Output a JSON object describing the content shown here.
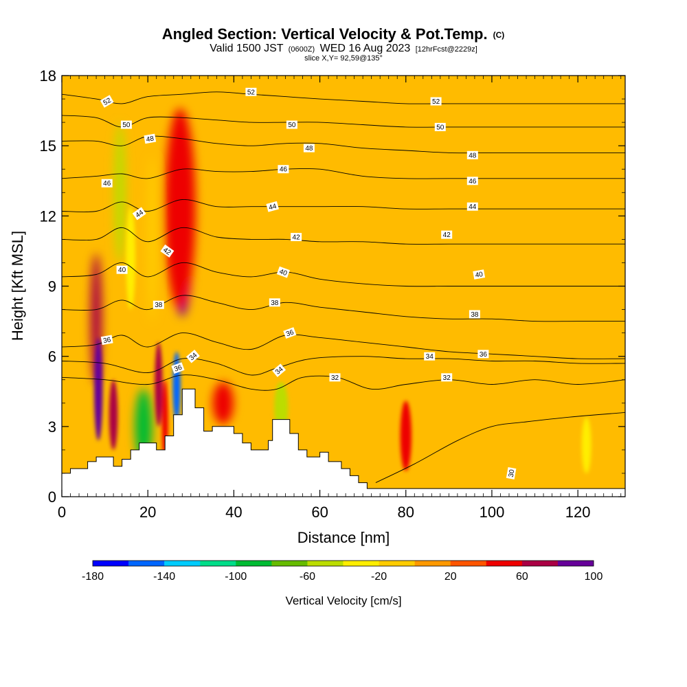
{
  "title": {
    "main": "Angled Section: Vertical Velocity & Pot.Temp.",
    "main_tag": "(C)",
    "valid_prefix": "Valid 1500 JST",
    "valid_utc": "(0600Z)",
    "valid_date": "WED 16 Aug 2023",
    "forecast": "[12hrFcst@2229z]",
    "slice": "slice X,Y= 92,59@135°"
  },
  "chart_data": {
    "type": "heatmap",
    "xlabel": "Distance [nm]",
    "ylabel": "Height [Kft MSL]",
    "xlim": [
      0,
      131
    ],
    "ylim": [
      0,
      18
    ],
    "x_ticks": [
      {
        "value": 0,
        "label": "0"
      },
      {
        "value": 20,
        "label": "20"
      },
      {
        "value": 40,
        "label": "40"
      },
      {
        "value": 60,
        "label": "60"
      },
      {
        "value": 80,
        "label": "80"
      },
      {
        "value": 100,
        "label": "100"
      },
      {
        "value": 120,
        "label": "120"
      }
    ],
    "y_ticks": [
      {
        "value": 0,
        "label": "0"
      },
      {
        "value": 3,
        "label": "3"
      },
      {
        "value": 6,
        "label": "6"
      },
      {
        "value": 9,
        "label": "9"
      },
      {
        "value": 12,
        "label": "12"
      },
      {
        "value": 15,
        "label": "15"
      },
      {
        "value": 18,
        "label": "18"
      }
    ],
    "colorbar": {
      "title": "Vertical Velocity [cm/s]",
      "min": -180,
      "max": 100,
      "step": 20,
      "tick_labels": [
        {
          "value": -180,
          "label": "-180"
        },
        {
          "value": -140,
          "label": "-140"
        },
        {
          "value": -100,
          "label": "-100"
        },
        {
          "value": -60,
          "label": "-60"
        },
        {
          "value": -20,
          "label": "-20"
        },
        {
          "value": 20,
          "label": "20"
        },
        {
          "value": 60,
          "label": "60"
        },
        {
          "value": 100,
          "label": "100"
        }
      ],
      "colors": [
        "#0000ff",
        "#0066ff",
        "#00ccff",
        "#00dd88",
        "#00bb33",
        "#66bb00",
        "#bbdd00",
        "#ffee00",
        "#ffcc00",
        "#ff9900",
        "#ff5500",
        "#ee0000",
        "#aa0044",
        "#660099"
      ]
    },
    "background_color": "#ffbb00",
    "terrain": [
      [
        0,
        0
      ],
      [
        0,
        1.0
      ],
      [
        2,
        1.0
      ],
      [
        2,
        1.2
      ],
      [
        6,
        1.2
      ],
      [
        6,
        1.5
      ],
      [
        8,
        1.5
      ],
      [
        8,
        1.7
      ],
      [
        12,
        1.7
      ],
      [
        12,
        1.3
      ],
      [
        14,
        1.3
      ],
      [
        14,
        1.6
      ],
      [
        16,
        1.6
      ],
      [
        16,
        2.0
      ],
      [
        18,
        2.0
      ],
      [
        18,
        2.3
      ],
      [
        22,
        2.3
      ],
      [
        22,
        2.0
      ],
      [
        24,
        2.0
      ],
      [
        24,
        2.6
      ],
      [
        26,
        2.6
      ],
      [
        26,
        3.5
      ],
      [
        28,
        3.5
      ],
      [
        28,
        4.6
      ],
      [
        31,
        4.6
      ],
      [
        31,
        3.8
      ],
      [
        33,
        3.8
      ],
      [
        33,
        2.8
      ],
      [
        35,
        2.8
      ],
      [
        35,
        3.0
      ],
      [
        40,
        3.0
      ],
      [
        40,
        2.7
      ],
      [
        42,
        2.7
      ],
      [
        42,
        2.3
      ],
      [
        44,
        2.3
      ],
      [
        44,
        2.0
      ],
      [
        48,
        2.0
      ],
      [
        48,
        2.4
      ],
      [
        49,
        2.4
      ],
      [
        49,
        3.3
      ],
      [
        53,
        3.3
      ],
      [
        53,
        2.7
      ],
      [
        55,
        2.7
      ],
      [
        55,
        2.0
      ],
      [
        57,
        2.0
      ],
      [
        57,
        1.7
      ],
      [
        60,
        1.7
      ],
      [
        60,
        1.9
      ],
      [
        62,
        1.9
      ],
      [
        62,
        1.5
      ],
      [
        65,
        1.5
      ],
      [
        65,
        1.2
      ],
      [
        67,
        1.2
      ],
      [
        67,
        0.9
      ],
      [
        69,
        0.9
      ],
      [
        69,
        0.6
      ],
      [
        71,
        0.6
      ],
      [
        71,
        0.35
      ],
      [
        131,
        0.35
      ],
      [
        131,
        0
      ]
    ],
    "velocity_features": [
      {
        "x": 28,
        "y": 11.5,
        "rx": 2.6,
        "ry": 3.8,
        "value": 85
      },
      {
        "x": 27.5,
        "y": 12.3,
        "rx": 3.6,
        "ry": 4.3,
        "value": 50
      },
      {
        "x": 8,
        "y": 7.6,
        "rx": 1.3,
        "ry": 2.8,
        "value": 65
      },
      {
        "x": 8.5,
        "y": 4.6,
        "rx": 1.0,
        "ry": 2.2,
        "value": 80
      },
      {
        "x": 12,
        "y": 3.5,
        "rx": 1.0,
        "ry": 1.5,
        "value": 60
      },
      {
        "x": 37.5,
        "y": 4.0,
        "rx": 2.4,
        "ry": 0.9,
        "value": 50
      },
      {
        "x": 22.5,
        "y": 4.8,
        "rx": 0.9,
        "ry": 1.8,
        "value": 65
      },
      {
        "x": 80,
        "y": 2.6,
        "rx": 1.3,
        "ry": 1.5,
        "value": 55
      },
      {
        "x": 24,
        "y": 3.2,
        "rx": 0.7,
        "ry": 1.8,
        "value": 45
      },
      {
        "x": 13.5,
        "y": 13.0,
        "rx": 1.3,
        "ry": 3.0,
        "value": -45
      },
      {
        "x": 16,
        "y": 10.2,
        "rx": 1.1,
        "ry": 2.2,
        "value": -40
      },
      {
        "x": 21,
        "y": 11.0,
        "rx": 1.1,
        "ry": 3.5,
        "value": -20
      },
      {
        "x": 19,
        "y": 3.0,
        "rx": 2.0,
        "ry": 1.6,
        "value": -100
      },
      {
        "x": 26.7,
        "y": 4.7,
        "rx": 0.9,
        "ry": 1.5,
        "value": -150
      },
      {
        "x": 51,
        "y": 3.8,
        "rx": 1.6,
        "ry": 1.1,
        "value": -50
      },
      {
        "x": 122,
        "y": 2.2,
        "rx": 1.1,
        "ry": 1.2,
        "value": -25
      }
    ],
    "theta_contours": [
      {
        "value": 30,
        "x": [
          73,
          82,
          92,
          100,
          108,
          118,
          131
        ],
        "y": [
          0.6,
          1.4,
          2.4,
          3.0,
          3.2,
          3.4,
          3.6
        ]
      },
      {
        "value": 32,
        "x": [
          0,
          10,
          20,
          28,
          36,
          44,
          50,
          56,
          64,
          72,
          80,
          90,
          100,
          110,
          120,
          131
        ],
        "y": [
          5.1,
          5.0,
          4.8,
          5.2,
          5.0,
          4.6,
          4.6,
          5.1,
          5.1,
          4.6,
          4.8,
          5.0,
          4.8,
          5.0,
          4.8,
          5.0
        ]
      },
      {
        "value": 34,
        "x": [
          0,
          10,
          20,
          28,
          36,
          44,
          50,
          58,
          70,
          80,
          90,
          100,
          110,
          120,
          131
        ],
        "y": [
          5.8,
          5.7,
          5.3,
          5.9,
          5.7,
          5.2,
          5.5,
          5.9,
          6.0,
          5.9,
          5.9,
          5.8,
          5.8,
          5.7,
          5.7
        ]
      },
      {
        "value": 36,
        "x": [
          0,
          8,
          14,
          20,
          28,
          36,
          44,
          52,
          60,
          70,
          80,
          90,
          100,
          110,
          120,
          131
        ],
        "y": [
          6.4,
          6.5,
          6.9,
          6.4,
          7.0,
          6.6,
          6.3,
          6.9,
          6.8,
          6.6,
          6.4,
          6.2,
          6.1,
          6.0,
          5.9,
          5.9
        ]
      },
      {
        "value": 38,
        "x": [
          0,
          8,
          14,
          20,
          28,
          36,
          44,
          52,
          60,
          70,
          80,
          90,
          100,
          110,
          120,
          131
        ],
        "y": [
          8.0,
          8.0,
          8.4,
          8.0,
          8.6,
          8.3,
          8.0,
          8.3,
          8.1,
          7.9,
          7.7,
          7.6,
          7.6,
          7.5,
          7.5,
          7.5
        ]
      },
      {
        "value": 40,
        "x": [
          0,
          8,
          14,
          20,
          28,
          36,
          44,
          52,
          60,
          70,
          80,
          90,
          100,
          110,
          120,
          131
        ],
        "y": [
          9.4,
          9.5,
          10.0,
          9.4,
          10.0,
          9.6,
          9.4,
          9.6,
          9.3,
          9.1,
          9.0,
          9.0,
          9.0,
          9.0,
          9.0,
          9.0
        ]
      },
      {
        "value": 42,
        "x": [
          0,
          8,
          14,
          20,
          28,
          36,
          44,
          52,
          60,
          70,
          80,
          90,
          100,
          110,
          120,
          131
        ],
        "y": [
          11.0,
          11.0,
          11.5,
          10.9,
          11.5,
          11.1,
          11.0,
          11.0,
          10.9,
          10.9,
          10.8,
          10.8,
          10.8,
          10.8,
          10.8,
          10.8
        ]
      },
      {
        "value": 44,
        "x": [
          0,
          8,
          14,
          20,
          28,
          36,
          44,
          52,
          60,
          70,
          80,
          90,
          100,
          110,
          120,
          131
        ],
        "y": [
          12.2,
          12.2,
          12.6,
          12.2,
          12.7,
          12.4,
          12.4,
          12.4,
          12.4,
          12.4,
          12.3,
          12.3,
          12.3,
          12.3,
          12.3,
          12.3
        ]
      },
      {
        "value": 46,
        "x": [
          0,
          8,
          14,
          20,
          28,
          36,
          44,
          52,
          60,
          70,
          80,
          90,
          100,
          110,
          120,
          131
        ],
        "y": [
          13.6,
          13.7,
          13.8,
          13.6,
          14.0,
          13.9,
          13.9,
          14.0,
          14.0,
          13.7,
          13.6,
          13.6,
          13.6,
          13.6,
          13.6,
          13.6
        ]
      },
      {
        "value": 48,
        "x": [
          0,
          8,
          14,
          20,
          28,
          36,
          44,
          52,
          60,
          70,
          80,
          90,
          100,
          110,
          120,
          131
        ],
        "y": [
          15.2,
          15.2,
          15.0,
          15.4,
          15.3,
          15.1,
          15.0,
          15.1,
          15.1,
          14.9,
          14.8,
          14.7,
          14.7,
          14.7,
          14.7,
          14.7
        ]
      },
      {
        "value": 50,
        "x": [
          0,
          8,
          14,
          20,
          28,
          36,
          44,
          52,
          60,
          70,
          80,
          90,
          100,
          110,
          120,
          131
        ],
        "y": [
          16.3,
          16.2,
          15.8,
          16.2,
          16.2,
          16.1,
          16.0,
          16.0,
          16.0,
          15.9,
          15.8,
          15.8,
          15.8,
          15.8,
          15.8,
          15.8
        ]
      },
      {
        "value": 52,
        "x": [
          0,
          8,
          14,
          20,
          28,
          36,
          44,
          52,
          60,
          70,
          80,
          90,
          100,
          110,
          120,
          131
        ],
        "y": [
          17.2,
          17.0,
          16.8,
          17.1,
          17.2,
          17.3,
          17.2,
          17.1,
          17.0,
          16.9,
          16.8,
          16.8,
          16.8,
          16.8,
          16.8,
          16.8
        ]
      }
    ],
    "contour_labels": [
      {
        "text": "52",
        "x": 10.5,
        "y": 16.9,
        "angle": -30
      },
      {
        "text": "52",
        "x": 44,
        "y": 17.3,
        "angle": 0
      },
      {
        "text": "52",
        "x": 87,
        "y": 16.9,
        "angle": 0
      },
      {
        "text": "50",
        "x": 15,
        "y": 15.9,
        "angle": 0
      },
      {
        "text": "50",
        "x": 53.5,
        "y": 15.9,
        "angle": 0
      },
      {
        "text": "50",
        "x": 88,
        "y": 15.8,
        "angle": 0
      },
      {
        "text": "48",
        "x": 20.5,
        "y": 15.3,
        "angle": -10
      },
      {
        "text": "48",
        "x": 57.5,
        "y": 14.9,
        "angle": 0
      },
      {
        "text": "48",
        "x": 95.5,
        "y": 14.6,
        "angle": 0
      },
      {
        "text": "46",
        "x": 51.5,
        "y": 14.0,
        "angle": 0
      },
      {
        "text": "46",
        "x": 10.5,
        "y": 13.4,
        "angle": 0
      },
      {
        "text": "46",
        "x": 95.5,
        "y": 13.5,
        "angle": 0
      },
      {
        "text": "44",
        "x": 49,
        "y": 12.4,
        "angle": -15
      },
      {
        "text": "44",
        "x": 18,
        "y": 12.1,
        "angle": -35
      },
      {
        "text": "44",
        "x": 95.5,
        "y": 12.4,
        "angle": 0
      },
      {
        "text": "42",
        "x": 54.5,
        "y": 11.1,
        "angle": 0
      },
      {
        "text": "42",
        "x": 89.5,
        "y": 11.2,
        "angle": 0
      },
      {
        "text": "42",
        "x": 24.5,
        "y": 10.5,
        "angle": 35
      },
      {
        "text": "40",
        "x": 14,
        "y": 9.7,
        "angle": 0
      },
      {
        "text": "40",
        "x": 51.5,
        "y": 9.6,
        "angle": 20
      },
      {
        "text": "40",
        "x": 97,
        "y": 9.5,
        "angle": -10
      },
      {
        "text": "38",
        "x": 22.5,
        "y": 8.2,
        "angle": 0
      },
      {
        "text": "38",
        "x": 49.5,
        "y": 8.3,
        "angle": 0
      },
      {
        "text": "38",
        "x": 96,
        "y": 7.8,
        "angle": 0
      },
      {
        "text": "36",
        "x": 10.5,
        "y": 6.7,
        "angle": -10
      },
      {
        "text": "36",
        "x": 53,
        "y": 7.0,
        "angle": -20
      },
      {
        "text": "36",
        "x": 98,
        "y": 6.1,
        "angle": 0
      },
      {
        "text": "36",
        "x": 27,
        "y": 5.5,
        "angle": -20
      },
      {
        "text": "34",
        "x": 30.5,
        "y": 6.0,
        "angle": -40
      },
      {
        "text": "34",
        "x": 50.5,
        "y": 5.4,
        "angle": -40
      },
      {
        "text": "34",
        "x": 85.5,
        "y": 6.0,
        "angle": 0
      },
      {
        "text": "32",
        "x": 63.5,
        "y": 5.1,
        "angle": 0
      },
      {
        "text": "32",
        "x": 89.5,
        "y": 5.1,
        "angle": 0
      },
      {
        "text": "30",
        "x": 104.5,
        "y": 1.0,
        "angle": -80
      }
    ]
  }
}
